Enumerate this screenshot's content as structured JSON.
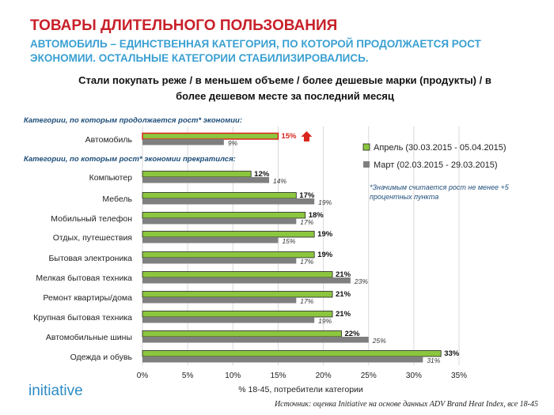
{
  "header": {
    "title": "ТОВАРЫ ДЛИТЕЛЬНОГО ПОЛЬЗОВАНИЯ",
    "subtitle": "АВТОМОБИЛЬ – ЕДИНСТВЕННАЯ КАТЕГОРИЯ, ПО КОТОРОЙ ПРОДОЛЖАЕТСЯ РОСТ ЭКОНОМИИ. ОСТАЛЬНЫЕ КАТЕГОРИИ СТАБИЛИЗИРОВАЛИСЬ."
  },
  "footer": {
    "logo": "initiative",
    "source": "Источник: оценка Initiative на основе данных ADV Brand Heat Index, все 18-45"
  },
  "chart_data": {
    "type": "bar",
    "orientation": "horizontal",
    "title": "Стали покупать реже / в меньшем объеме / более дешевые марки (продукты) / в более дешевом месте за последний месяц",
    "xlabel": "% 18-45, потребители категории",
    "xlim": [
      0,
      35
    ],
    "x_ticks": [
      "0%",
      "5%",
      "10%",
      "15%",
      "20%",
      "25%",
      "30%",
      "35%"
    ],
    "grid": true,
    "legend_position": "right",
    "groups": [
      {
        "label": "Категории, по которым продолжается рост* экономии:",
        "categories": [
          "Автомобиль"
        ]
      },
      {
        "label": "Категории, по которым рост* экономии прекратился:",
        "categories": [
          "Компьютер",
          "Мебель",
          "Мобильный телефон",
          "Отдых, путешествия",
          "Бытовая электроника",
          "Мелкая бытовая техника",
          "Ремонт квартиры/дома",
          "Крупная бытовая техника",
          "Автомобильные шины",
          "Одежда и обувь"
        ]
      }
    ],
    "categories": [
      "Автомобиль",
      "Компьютер",
      "Мебель",
      "Мобильный телефон",
      "Отдых, путешествия",
      "Бытовая электроника",
      "Мелкая бытовая техника",
      "Ремонт квартиры/дома",
      "Крупная бытовая техника",
      "Автомобильные шины",
      "Одежда и обувь"
    ],
    "series": [
      {
        "name": "Апрель (30.03.2015 - 05.04.2015)",
        "color": "#8cc63f",
        "values": [
          15,
          12,
          17,
          18,
          19,
          19,
          21,
          21,
          21,
          22,
          33
        ],
        "labels": [
          "15%",
          "12%",
          "17%",
          "18%",
          "19%",
          "19%",
          "21%",
          "21%",
          "21%",
          "22%",
          "33%"
        ]
      },
      {
        "name": "Март (02.03.2015 - 29.03.2015)",
        "color": "#7f7f7f",
        "values": [
          9,
          14,
          19,
          17,
          15,
          17,
          23,
          17,
          19,
          25,
          31
        ],
        "labels": [
          "9%",
          "14%",
          "19%",
          "17%",
          "15%",
          "17%",
          "23%",
          "17%",
          "19%",
          "25%",
          "31%"
        ]
      }
    ],
    "highlight": {
      "category": "Автомобиль",
      "outline_color": "#d9261c",
      "arrow": "up-arrow-icon"
    },
    "note": "*Значимым считается рост не менее +5 процентных пункта"
  }
}
